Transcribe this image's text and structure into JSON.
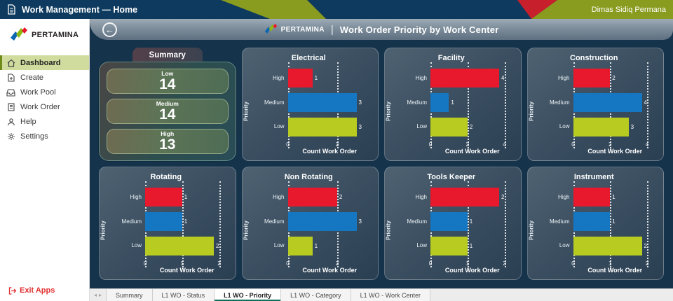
{
  "topbar": {
    "app_title": "Work Management — Home",
    "user_name": "Dimas Sidiq Permana"
  },
  "sidebar": {
    "brand": "PERTAMINA",
    "items": [
      {
        "label": "Dashboard",
        "icon": "home-icon",
        "active": true
      },
      {
        "label": "Create",
        "icon": "create-icon",
        "active": false
      },
      {
        "label": "Work Pool",
        "icon": "inbox-icon",
        "active": false
      },
      {
        "label": "Work Order",
        "icon": "document-icon",
        "active": false
      },
      {
        "label": "Help",
        "icon": "help-icon",
        "active": false
      },
      {
        "label": "Settings",
        "icon": "gear-icon",
        "active": false
      }
    ],
    "exit_label": "Exit Apps"
  },
  "header": {
    "brand": "PERTAMINA",
    "separator": "|",
    "title": "Work Order Priority by Work Center",
    "back_glyph": "←"
  },
  "summary": {
    "tab_label": "Summary",
    "stats": [
      {
        "label": "Low",
        "value": "14"
      },
      {
        "label": "Medium",
        "value": "14"
      },
      {
        "label": "High",
        "value": "13"
      }
    ]
  },
  "colors": {
    "series": [
      "#e8192d",
      "#1577c2",
      "#b7cb20"
    ],
    "brand_blue": "#0d68b1",
    "brand_green": "#8a9c20",
    "brand_red": "#c81f2d",
    "navy": "#0d3a5e"
  },
  "chart_data": [
    {
      "type": "bar",
      "orientation": "horizontal",
      "title": "Electrical",
      "categories": [
        "High",
        "Medium",
        "Low"
      ],
      "values": [
        1,
        3,
        3
      ],
      "xticks": [
        0,
        2
      ],
      "xmax": 3,
      "xlabel": "Count Work Order",
      "ylabel": "Priority"
    },
    {
      "type": "bar",
      "orientation": "horizontal",
      "title": "Facility",
      "categories": [
        "High",
        "Medium",
        "Low"
      ],
      "values": [
        4,
        1,
        2
      ],
      "xticks": [
        0,
        2,
        4
      ],
      "xmax": 4,
      "xlabel": "Count Work Order",
      "ylabel": "Priority"
    },
    {
      "type": "bar",
      "orientation": "horizontal",
      "title": "Construction",
      "categories": [
        "High",
        "Medium",
        "Low"
      ],
      "values": [
        2,
        4,
        3
      ],
      "xticks": [
        0,
        2,
        4
      ],
      "xmax": 4,
      "xlabel": "Count Work Order",
      "ylabel": "Priority"
    },
    {
      "type": "bar",
      "orientation": "horizontal",
      "title": "Rotating",
      "categories": [
        "High",
        "Medium",
        "Low"
      ],
      "values": [
        1,
        1,
        2
      ],
      "xticks": [
        0,
        1,
        2
      ],
      "xmax": 2,
      "xlabel": "Count Work Order",
      "ylabel": "Priority"
    },
    {
      "type": "bar",
      "orientation": "horizontal",
      "title": "Non Rotating",
      "categories": [
        "High",
        "Medium",
        "Low"
      ],
      "values": [
        2,
        3,
        1
      ],
      "xticks": [
        0,
        2
      ],
      "xmax": 3,
      "xlabel": "Count Work Order",
      "ylabel": "Priority"
    },
    {
      "type": "bar",
      "orientation": "horizontal",
      "title": "Tools Keeper",
      "categories": [
        "High",
        "Medium",
        "Low"
      ],
      "values": [
        2,
        1,
        1
      ],
      "xticks": [
        0,
        1,
        2
      ],
      "xmax": 2,
      "xlabel": "Count Work Order",
      "ylabel": "Priority"
    },
    {
      "type": "bar",
      "orientation": "horizontal",
      "title": "Instrument",
      "categories": [
        "High",
        "Medium",
        "Low"
      ],
      "values": [
        1,
        1,
        2
      ],
      "xticks": [
        0,
        1,
        2
      ],
      "xmax": 2,
      "xlabel": "Count Work Order",
      "ylabel": "Priority"
    }
  ],
  "tabbar": {
    "tabs": [
      {
        "label": "Summary",
        "active": false
      },
      {
        "label": "L1 WO - Status",
        "active": false
      },
      {
        "label": "L1 WO - Priority",
        "active": true
      },
      {
        "label": "L1 WO - Category",
        "active": false
      },
      {
        "label": "L1 WO - Work Center",
        "active": false
      }
    ]
  }
}
